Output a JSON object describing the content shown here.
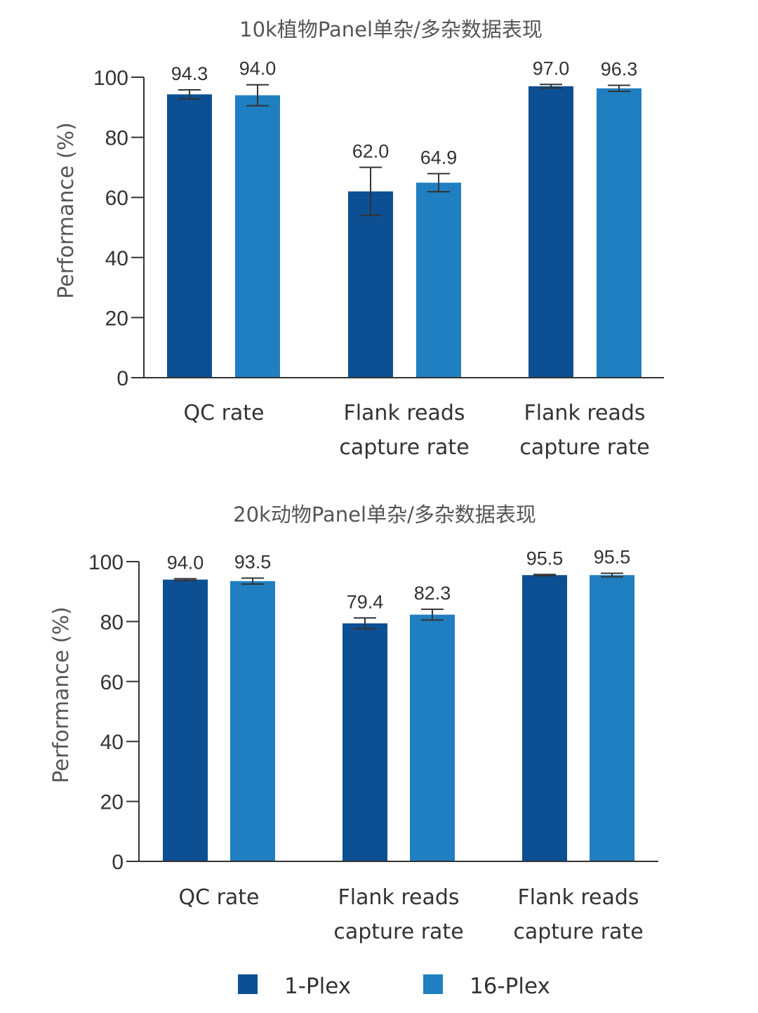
{
  "colors": {
    "plex1": "#0d4f93",
    "plex16": "#1f7fc0",
    "axis": "#333333",
    "error": "#333333"
  },
  "legend": {
    "items": [
      {
        "label": "1-Plex"
      },
      {
        "label": "16-Plex"
      }
    ]
  },
  "chart_data": [
    {
      "type": "bar",
      "title": "10k植物Panel单杂/多杂数据表现",
      "ylabel": "Performance (%)",
      "ylim": [
        0,
        100
      ],
      "yticks": [
        "0",
        "20",
        "40",
        "60",
        "80",
        "100"
      ],
      "categories": [
        {
          "line1": "QC rate",
          "line2": ""
        },
        {
          "line1": "Flank reads",
          "line2": "capture rate"
        },
        {
          "line1": "Flank reads",
          "line2": "capture rate"
        }
      ],
      "series": [
        {
          "name": "1-Plex",
          "values": [
            94.3,
            62.0,
            97.0
          ],
          "labels": [
            "94.3",
            "62.0",
            "97.0"
          ],
          "error": [
            1.5,
            8.0,
            0.6
          ]
        },
        {
          "name": "16-Plex",
          "values": [
            94.0,
            64.9,
            96.3
          ],
          "labels": [
            "94.0",
            "64.9",
            "96.3"
          ],
          "error": [
            3.5,
            3.0,
            1.0
          ]
        }
      ]
    },
    {
      "type": "bar",
      "title": "20k动物Panel单杂/多杂数据表现",
      "ylabel": "Performance (%)",
      "ylim": [
        0,
        100
      ],
      "yticks": [
        "0",
        "20",
        "40",
        "60",
        "80",
        "100"
      ],
      "categories": [
        {
          "line1": "QC rate",
          "line2": ""
        },
        {
          "line1": "Flank reads",
          "line2": "capture rate"
        },
        {
          "line1": "Flank reads",
          "line2": "capture rate"
        }
      ],
      "series": [
        {
          "name": "1-Plex",
          "values": [
            94.0,
            79.4,
            95.5
          ],
          "labels": [
            "94.0",
            "79.4",
            "95.5"
          ],
          "error": [
            0.3,
            1.8,
            0.2
          ]
        },
        {
          "name": "16-Plex",
          "values": [
            93.5,
            82.3,
            95.5
          ],
          "labels": [
            "93.5",
            "82.3",
            "95.5"
          ],
          "error": [
            1.0,
            1.8,
            0.6
          ]
        }
      ]
    }
  ]
}
